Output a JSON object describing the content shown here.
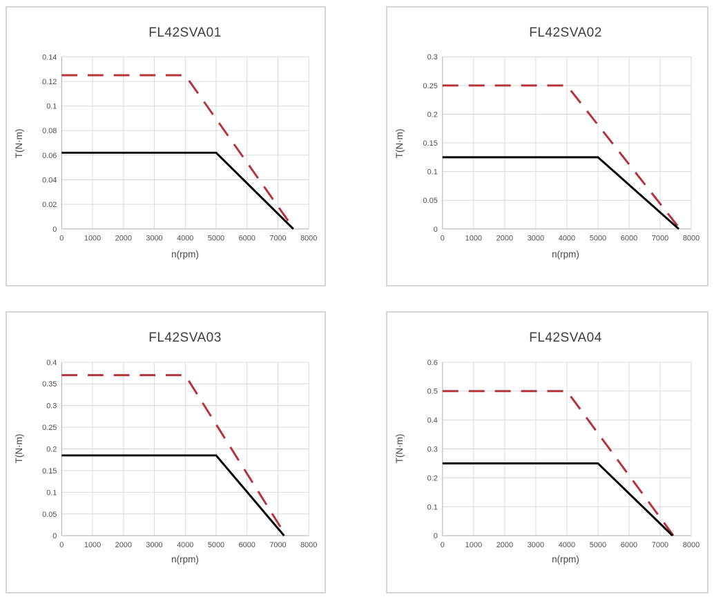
{
  "colors": {
    "peak_line": "#b4343a",
    "rated_line": "#000000",
    "grid": "#d9d9d9",
    "axis": "#bdbdbd",
    "panel_border": "#d6d6d6",
    "title_text": "#3d3d3d",
    "tick_text": "#4e4e4e"
  },
  "chart_data": [
    {
      "type": "line",
      "title": "FL42SVA01",
      "xlabel": "n(rpm)",
      "ylabel": "T(N·m)",
      "xlim": [
        0,
        8000
      ],
      "ylim": [
        0,
        0.14
      ],
      "grid": true,
      "legend": "none",
      "x_ticks": [
        0,
        1000,
        2000,
        3000,
        4000,
        5000,
        6000,
        7000,
        8000
      ],
      "x_tick_labels": [
        "0",
        "1000",
        "2000",
        "3000",
        "4000",
        "5000",
        "6000",
        "7000",
        "8000"
      ],
      "y_ticks": [
        0,
        0.02,
        0.04,
        0.06,
        0.08,
        0.1,
        0.12,
        0.14
      ],
      "y_tick_labels": [
        "0",
        "0.02",
        "0.04",
        "0.06",
        "0.08",
        "0.1",
        "0.12",
        "0.14"
      ],
      "series": [
        {
          "name": "dashed-red-peak-torque",
          "style": "dashed",
          "color_key": "peak_line",
          "points": [
            [
              0,
              0.125
            ],
            [
              4000,
              0.125
            ],
            [
              7520,
              0
            ]
          ]
        },
        {
          "name": "solid-black-rated-torque",
          "style": "solid",
          "color_key": "rated_line",
          "points": [
            [
              0,
              0.062
            ],
            [
              5000,
              0.062
            ],
            [
              7500,
              0
            ]
          ]
        }
      ]
    },
    {
      "type": "line",
      "title": "FL42SVA02",
      "xlabel": "n(rpm)",
      "ylabel": "T(N·m)",
      "xlim": [
        0,
        8000
      ],
      "ylim": [
        0,
        0.3
      ],
      "grid": true,
      "legend": "none",
      "x_ticks": [
        0,
        1000,
        2000,
        3000,
        4000,
        5000,
        6000,
        7000,
        8000
      ],
      "x_tick_labels": [
        "0",
        "1000",
        "2000",
        "3000",
        "4000",
        "5000",
        "6000",
        "7000",
        "8000"
      ],
      "y_ticks": [
        0,
        0.05,
        0.1,
        0.15,
        0.2,
        0.25,
        0.3
      ],
      "y_tick_labels": [
        "0",
        "0.05",
        "0.1",
        "0.15",
        "0.2",
        "0.25",
        "0.3"
      ],
      "series": [
        {
          "name": "dashed-red-peak-torque",
          "style": "dashed",
          "color_key": "peak_line",
          "points": [
            [
              0,
              0.25
            ],
            [
              4000,
              0.25
            ],
            [
              7640,
              0
            ]
          ]
        },
        {
          "name": "solid-black-rated-torque",
          "style": "solid",
          "color_key": "rated_line",
          "points": [
            [
              0,
              0.125
            ],
            [
              5000,
              0.125
            ],
            [
              7600,
              0
            ]
          ]
        }
      ]
    },
    {
      "type": "line",
      "title": "FL42SVA03",
      "xlabel": "n(rpm)",
      "ylabel": "T(N·m)",
      "xlim": [
        0,
        8000
      ],
      "ylim": [
        0,
        0.4
      ],
      "grid": true,
      "legend": "none",
      "x_ticks": [
        0,
        1000,
        2000,
        3000,
        4000,
        5000,
        6000,
        7000,
        8000
      ],
      "x_tick_labels": [
        "0",
        "1000",
        "2000",
        "3000",
        "4000",
        "5000",
        "6000",
        "7000",
        "8000"
      ],
      "y_ticks": [
        0,
        0.05,
        0.1,
        0.15,
        0.2,
        0.25,
        0.3,
        0.35,
        0.4
      ],
      "y_tick_labels": [
        "0",
        "0.05",
        "0.1",
        "0.15",
        "0.2",
        "0.25",
        "0.3",
        "0.35",
        "0.4"
      ],
      "series": [
        {
          "name": "dashed-red-peak-torque",
          "style": "dashed",
          "color_key": "peak_line",
          "points": [
            [
              0,
              0.37
            ],
            [
              4000,
              0.37
            ],
            [
              7260,
              0
            ]
          ]
        },
        {
          "name": "solid-black-rated-torque",
          "style": "solid",
          "color_key": "rated_line",
          "points": [
            [
              0,
              0.185
            ],
            [
              5000,
              0.185
            ],
            [
              7200,
              0
            ]
          ]
        }
      ]
    },
    {
      "type": "line",
      "title": "FL42SVA04",
      "xlabel": "n(rpm)",
      "ylabel": "T(N·m)",
      "xlim": [
        0,
        8000
      ],
      "ylim": [
        0,
        0.6
      ],
      "grid": true,
      "legend": "none",
      "x_ticks": [
        0,
        1000,
        2000,
        3000,
        4000,
        5000,
        6000,
        7000,
        8000
      ],
      "x_tick_labels": [
        "0",
        "1000",
        "2000",
        "3000",
        "4000",
        "5000",
        "6000",
        "7000",
        "8000"
      ],
      "y_ticks": [
        0,
        0.1,
        0.2,
        0.3,
        0.4,
        0.5,
        0.6
      ],
      "y_tick_labels": [
        "0",
        "0.1",
        "0.2",
        "0.3",
        "0.4",
        "0.5",
        "0.6"
      ],
      "series": [
        {
          "name": "dashed-red-peak-torque",
          "style": "dashed",
          "color_key": "peak_line",
          "points": [
            [
              0,
              0.5
            ],
            [
              4000,
              0.5
            ],
            [
              7430,
              0
            ]
          ]
        },
        {
          "name": "solid-black-rated-torque",
          "style": "solid",
          "color_key": "rated_line",
          "points": [
            [
              0,
              0.25
            ],
            [
              5000,
              0.25
            ],
            [
              7400,
              0
            ]
          ]
        }
      ]
    }
  ]
}
